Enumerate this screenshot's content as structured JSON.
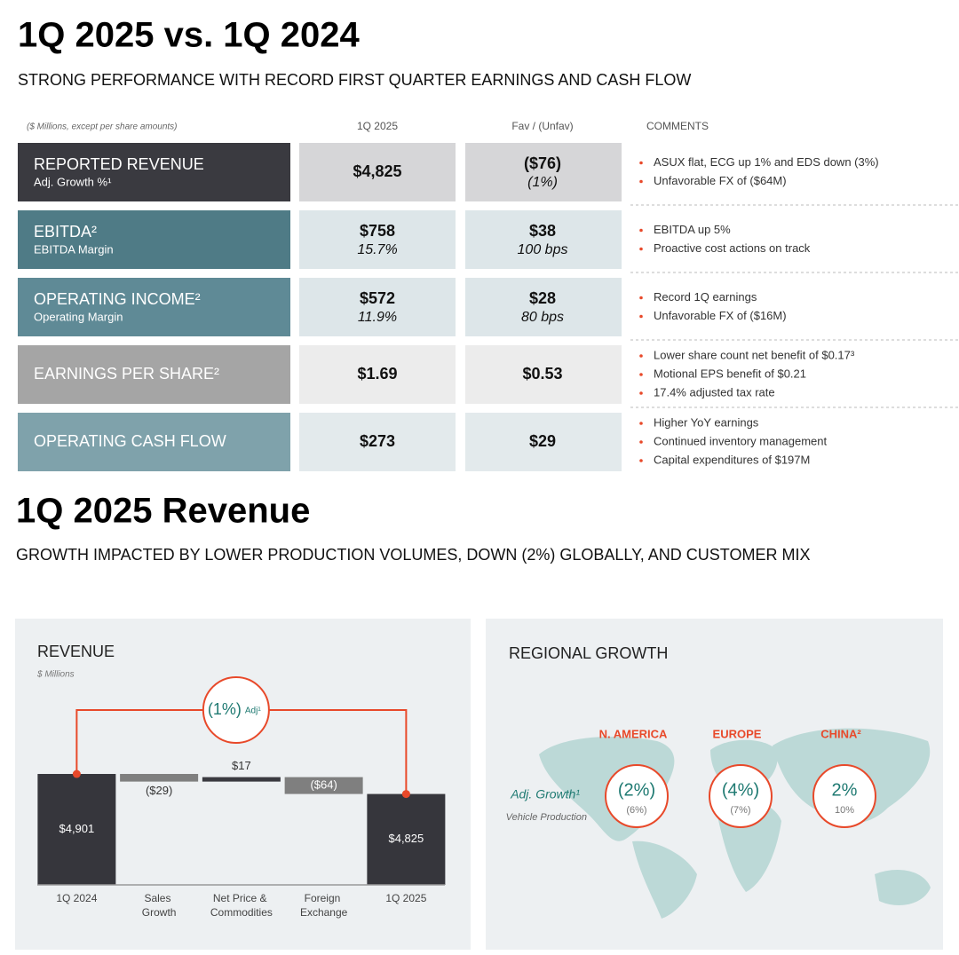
{
  "header": {
    "title": "1Q 2025 vs. 1Q 2024",
    "subtitle": "STRONG PERFORMANCE WITH RECORD FIRST QUARTER EARNINGS AND CASH FLOW"
  },
  "table": {
    "note": "($ Millions, except per share amounts)",
    "columns": [
      "1Q 2025",
      "Fav / (Unfav)",
      "COMMENTS"
    ],
    "rows": [
      {
        "label": "REPORTED REVENUE",
        "sublabel": "Adj. Growth %¹",
        "value": "$4,825",
        "fav": "($76)",
        "fav_sub": "(1%)",
        "comments": [
          "ASUX flat, ECG up 1% and EDS down (3%)",
          "Unfavorable FX of ($64M)"
        ],
        "color": "#3a3a40",
        "cell_color": "#d6d6d8"
      },
      {
        "label": "EBITDA²",
        "sublabel": "EBITDA Margin",
        "value": "$758",
        "value_sub": "15.7%",
        "fav": "$38",
        "fav_sub": "100 bps",
        "comments": [
          "EBITDA up 5%",
          "Proactive cost actions on track"
        ],
        "color": "#4f7b86",
        "cell_color": "#dde6e9"
      },
      {
        "label": "OPERATING INCOME²",
        "sublabel": "Operating Margin",
        "value": "$572",
        "value_sub": "11.9%",
        "fav": "$28",
        "fav_sub": "80 bps",
        "comments": [
          "Record 1Q earnings",
          "Unfavorable FX of ($16M)"
        ],
        "color": "#5f8a96",
        "cell_color": "#dde6e9"
      },
      {
        "label": "EARNINGS PER SHARE²",
        "value": "$1.69",
        "fav": "$0.53",
        "comments": [
          "Lower share count net benefit of $0.17³",
          "Motional EPS benefit of $0.21",
          "17.4% adjusted tax rate"
        ],
        "color": "#a5a5a5",
        "cell_color": "#ececec"
      },
      {
        "label": "OPERATING CASH FLOW",
        "value": "$273",
        "fav": "$29",
        "comments": [
          "Higher YoY earnings",
          "Continued inventory management",
          "Capital expenditures of $197M"
        ],
        "color": "#7fa2ab",
        "cell_color": "#e3eaec"
      }
    ]
  },
  "section": {
    "title": "1Q 2025 Revenue",
    "subtitle": "GROWTH IMPACTED BY LOWER PRODUCTION VOLUMES, DOWN (2%) GLOBALLY, AND CUSTOMER MIX"
  },
  "chart_data": {
    "type": "waterfall",
    "title": "REVENUE",
    "subtitle": "$ Millions",
    "categories": [
      "1Q 2024",
      "Sales Growth",
      "Net Price & Commodities",
      "Foreign Exchange",
      "1Q 2025"
    ],
    "values": [
      4901,
      -29,
      17,
      -64,
      4825
    ],
    "value_labels": [
      "$4,901",
      "($29)",
      "$17",
      "($64)",
      "$4,825"
    ],
    "totals": [
      true,
      false,
      false,
      false,
      true
    ],
    "colors": [
      "#36363c",
      "#7f7f7f",
      "#3a3a40",
      "#7f7f7f",
      "#36363c"
    ],
    "ylim": [
      4480,
      4960
    ],
    "annotation": "(1%)",
    "annotation_note": "Adj¹",
    "connector_color": "#e8492a"
  },
  "regional": {
    "title": "REGIONAL GROWTH",
    "legend_label": "Adj. Growth¹",
    "legend_sub": "Vehicle Production",
    "regions": [
      {
        "name": "N. AMERICA",
        "growth": "(2%)",
        "production": "(6%)"
      },
      {
        "name": "EUROPE",
        "growth": "(4%)",
        "production": "(7%)"
      },
      {
        "name": "CHINA²",
        "growth": "2%",
        "production": "10%"
      }
    ]
  }
}
